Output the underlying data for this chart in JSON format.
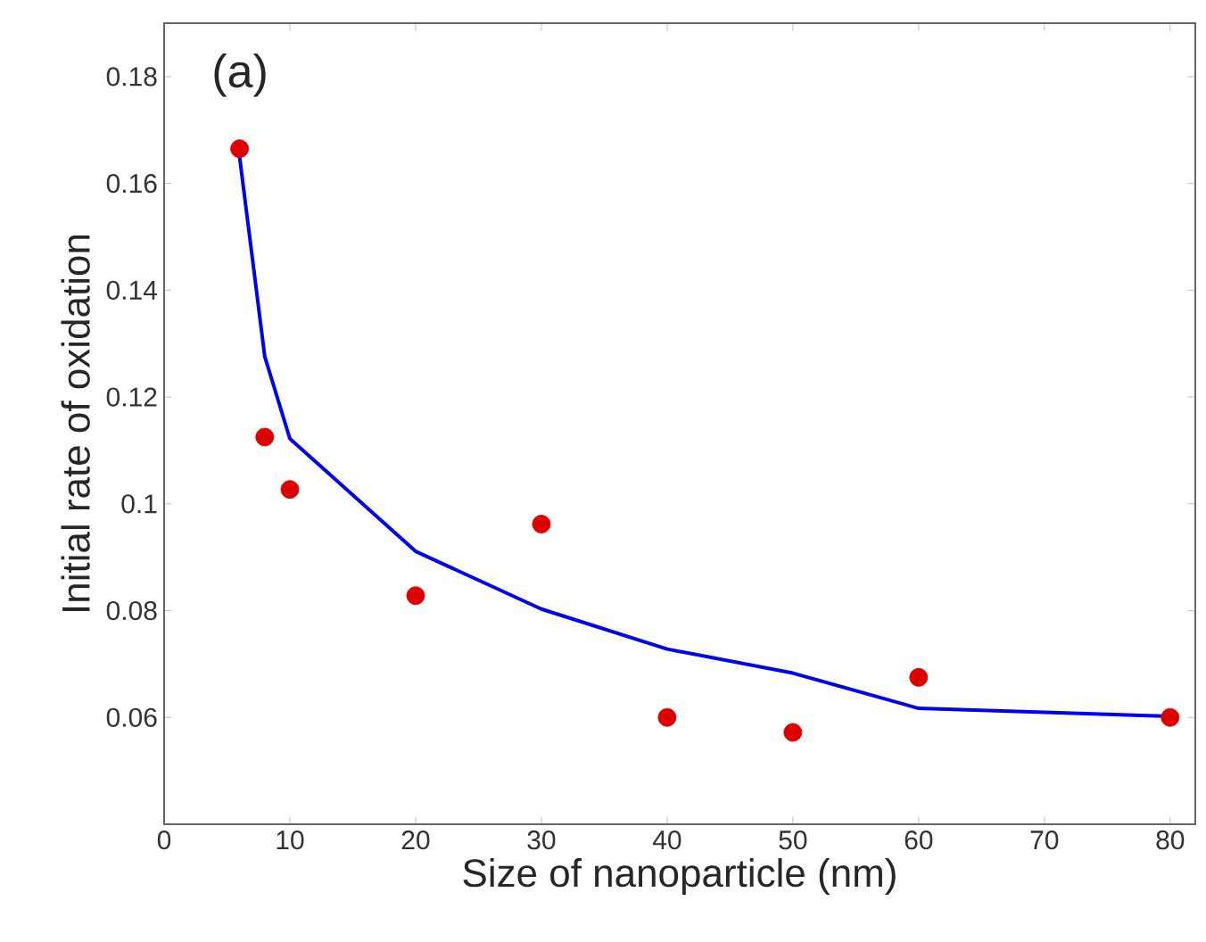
{
  "chart_data": {
    "type": "scatter",
    "xlabel": "Size of nanoparticle (nm)",
    "ylabel": "Initial rate of oxidation",
    "annotations": [
      "(a)"
    ],
    "xlim": [
      0,
      82
    ],
    "xticks": [
      0,
      10,
      20,
      30,
      40,
      50,
      60,
      70,
      80
    ],
    "ylim": [
      0.04,
      0.19
    ],
    "yticks": [
      {
        "value": 0.04,
        "label": null
      },
      0.06,
      0.08,
      {
        "value": 0.1,
        "label": "0.1"
      },
      0.12,
      0.14,
      0.16,
      0.18
    ],
    "series": [
      {
        "color": "#dd0000",
        "marker": "circle",
        "x": [
          6,
          8,
          10,
          20,
          30,
          40,
          50,
          60,
          80
        ],
        "values": [
          0.1665,
          0.1125,
          0.1027,
          0.0828,
          0.0962,
          0.06,
          0.0572,
          0.0675,
          0.06
        ]
      },
      {
        "type": "line",
        "color": "#0000ee",
        "marker": "none",
        "line_style": "solid",
        "x": [
          6,
          8,
          10,
          20,
          30,
          40,
          50,
          60,
          80
        ],
        "values": [
          0.165,
          0.1276,
          0.1122,
          0.0911,
          0.0803,
          0.0728,
          0.0683,
          0.0617,
          0.0602
        ]
      }
    ]
  }
}
